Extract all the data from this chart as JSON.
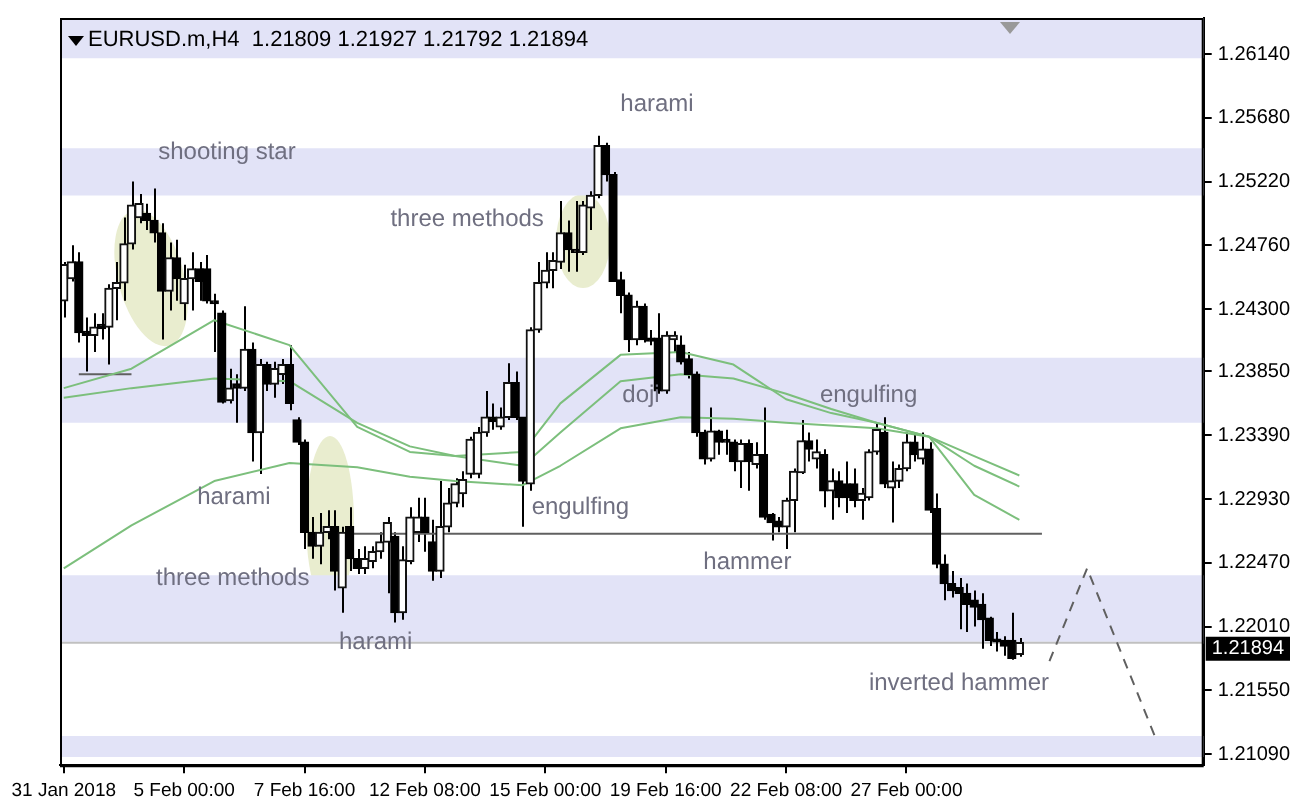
{
  "chart_data": {
    "type": "candlestick",
    "title": "EURUSD.m,H4  1.21809 1.21927 1.21792 1.21894",
    "categories": [
      "31 Jan 2018",
      null,
      null,
      null,
      null,
      null,
      null,
      null,
      null,
      null,
      null,
      null,
      null,
      null,
      null,
      null,
      "5 Feb 00:00",
      null,
      null,
      null,
      null,
      null,
      null,
      null,
      null,
      null,
      null,
      null,
      null,
      null,
      null,
      null,
      "7 Feb 16:00",
      null,
      null,
      null,
      null,
      null,
      null,
      null,
      null,
      null,
      null,
      null,
      null,
      null,
      null,
      null,
      "12 Feb 08:00",
      null,
      null,
      null,
      null,
      null,
      null,
      null,
      null,
      null,
      null,
      null,
      null,
      null,
      null,
      null,
      "15 Feb 00:00",
      null,
      null,
      null,
      null,
      null,
      null,
      null,
      null,
      null,
      null,
      null,
      null,
      null,
      null,
      null,
      "19 Feb 16:00",
      null,
      null,
      null,
      null,
      null,
      null,
      null,
      null,
      null,
      null,
      null,
      null,
      null,
      null,
      null,
      "22 Feb 08:00",
      null,
      null,
      null,
      null,
      null,
      null,
      null,
      null,
      null,
      null,
      null,
      null,
      null,
      null,
      null,
      "27 Feb 00:00",
      null,
      null,
      null,
      null,
      null,
      null,
      null,
      null,
      null,
      null,
      null,
      null,
      null,
      null,
      null,
      null,
      null,
      null,
      null,
      null,
      null,
      null,
      null,
      null,
      null,
      null,
      null,
      null,
      null,
      null,
      null,
      null,
      null,
      null,
      null,
      null,
      null,
      null,
      null
    ],
    "ohlc": [
      [
        1.2436,
        1.2464,
        1.2424,
        1.2462
      ],
      [
        1.2452,
        1.2476,
        1.245,
        1.2464
      ],
      [
        1.2464,
        1.2471,
        1.2406,
        1.2413
      ],
      [
        1.2414,
        1.2424,
        1.2385,
        1.2411
      ],
      [
        1.2411,
        1.2427,
        1.2399,
        1.2417
      ],
      [
        1.2419,
        1.2427,
        1.2408,
        1.2416
      ],
      [
        1.2417,
        1.2448,
        1.239,
        1.2445
      ],
      [
        1.2445,
        1.2464,
        1.2422,
        1.2449
      ],
      [
        1.2449,
        1.2496,
        1.2436,
        1.2477
      ],
      [
        1.2477,
        1.2522,
        1.2473,
        1.2505
      ],
      [
        1.2496,
        1.2513,
        1.2492,
        1.2506
      ],
      [
        1.2499,
        1.2506,
        1.2487,
        1.2494
      ],
      [
        1.2494,
        1.2517,
        1.2478,
        1.2485
      ],
      [
        1.2485,
        1.2492,
        1.2408,
        1.2443
      ],
      [
        1.2443,
        1.2478,
        1.2429,
        1.2467
      ],
      [
        1.2467,
        1.248,
        1.2436,
        1.2452
      ],
      [
        1.2434,
        1.2462,
        1.2422,
        1.2452
      ],
      [
        1.2452,
        1.2471,
        1.2429,
        1.2459
      ],
      [
        1.2459,
        1.2464,
        1.2436,
        1.245
      ],
      [
        1.2459,
        1.2469,
        1.2434,
        1.2436
      ],
      [
        1.2436,
        1.2441,
        1.2399,
        1.2434
      ],
      [
        1.2427,
        1.2429,
        1.2362,
        1.2363
      ],
      [
        1.2364,
        1.2387,
        1.2362,
        1.2373
      ],
      [
        1.2376,
        1.2383,
        1.2348,
        1.2373
      ],
      [
        1.2373,
        1.2432,
        1.2371,
        1.2401
      ],
      [
        1.2401,
        1.2406,
        1.232,
        1.2341
      ],
      [
        1.2341,
        1.2394,
        1.2311,
        1.239
      ],
      [
        1.239,
        1.2392,
        1.2371,
        1.2376
      ],
      [
        1.2376,
        1.2392,
        1.2366,
        1.2387
      ],
      [
        1.2383,
        1.2394,
        1.2376,
        1.239
      ],
      [
        1.239,
        1.2404,
        1.2357,
        1.2362
      ],
      [
        1.235,
        1.2352,
        1.2332,
        1.2334
      ],
      [
        1.2334,
        1.2336,
        1.2257,
        1.2269
      ],
      [
        1.2269,
        1.228,
        1.225,
        1.2259
      ],
      [
        1.2259,
        1.2283,
        1.2246,
        1.2269
      ],
      [
        1.2269,
        1.2285,
        1.2264,
        1.2273
      ],
      [
        1.2273,
        1.2285,
        1.2227,
        1.2241
      ],
      [
        1.2229,
        1.2273,
        1.2211,
        1.2269
      ],
      [
        1.2273,
        1.2287,
        1.2241,
        1.225
      ],
      [
        1.225,
        1.2257,
        1.2239,
        1.2243
      ],
      [
        1.2243,
        1.2259,
        1.2239,
        1.225
      ],
      [
        1.2248,
        1.2259,
        1.2243,
        1.2255
      ],
      [
        1.2255,
        1.2269,
        1.225,
        1.2262
      ],
      [
        1.2262,
        1.228,
        1.2225,
        1.2276
      ],
      [
        1.2266,
        1.2269,
        1.2204,
        1.2211
      ],
      [
        1.2211,
        1.2259,
        1.2206,
        1.2249
      ],
      [
        1.2248,
        1.2287,
        1.2246,
        1.228
      ],
      [
        1.2269,
        1.2294,
        1.2262,
        1.228
      ],
      [
        1.228,
        1.2294,
        1.2255,
        1.2269
      ],
      [
        1.2262,
        1.2278,
        1.2234,
        1.2241
      ],
      [
        1.2241,
        1.2306,
        1.2236,
        1.2273
      ],
      [
        1.2273,
        1.2301,
        1.2269,
        1.229
      ],
      [
        1.229,
        1.2308,
        1.2287,
        1.2304
      ],
      [
        1.2297,
        1.2313,
        1.2287,
        1.2307
      ],
      [
        1.2311,
        1.2338,
        1.2308,
        1.2336
      ],
      [
        1.2311,
        1.2345,
        1.2308,
        1.2341
      ],
      [
        1.2341,
        1.2371,
        1.2338,
        1.2352
      ],
      [
        1.2352,
        1.2362,
        1.2343,
        1.2349
      ],
      [
        1.2345,
        1.2359,
        1.2343,
        1.2352
      ],
      [
        1.2352,
        1.2391,
        1.235,
        1.2377
      ],
      [
        1.2377,
        1.2385,
        1.235,
        1.2352
      ],
      [
        1.2352,
        1.2352,
        1.2273,
        1.2306
      ],
      [
        1.2304,
        1.2417,
        1.2299,
        1.2415
      ],
      [
        1.2415,
        1.2464,
        1.2413,
        1.2449
      ],
      [
        1.2449,
        1.2471,
        1.2445,
        1.2458
      ],
      [
        1.2458,
        1.2471,
        1.2445,
        1.2465
      ],
      [
        1.2464,
        1.2508,
        1.2459,
        1.2485
      ],
      [
        1.2485,
        1.2494,
        1.2457,
        1.2473
      ],
      [
        1.2473,
        1.2508,
        1.2457,
        1.2471
      ],
      [
        1.2471,
        1.2508,
        1.2469,
        1.2505
      ],
      [
        1.2503,
        1.2515,
        1.2487,
        1.2512
      ],
      [
        1.2512,
        1.2555,
        1.251,
        1.2548
      ],
      [
        1.2548,
        1.255,
        1.2522,
        1.2527
      ],
      [
        1.2527,
        1.2529,
        1.245,
        1.245
      ],
      [
        1.2451,
        1.2457,
        1.2427,
        1.244
      ],
      [
        1.244,
        1.2442,
        1.2399,
        1.2408
      ],
      [
        1.2408,
        1.2436,
        1.2404,
        1.2432
      ],
      [
        1.2432,
        1.2434,
        1.2406,
        1.2408
      ],
      [
        1.2409,
        1.2415,
        1.2404,
        1.2407
      ],
      [
        1.2409,
        1.2427,
        1.2369,
        1.2371
      ],
      [
        1.2371,
        1.2414,
        1.2369,
        1.2411
      ],
      [
        1.2408,
        1.2414,
        1.2399,
        1.2411
      ],
      [
        1.2404,
        1.2411,
        1.239,
        1.2392
      ],
      [
        1.2394,
        1.2399,
        1.238,
        1.2383
      ],
      [
        1.2383,
        1.2385,
        1.2338,
        1.2341
      ],
      [
        1.2341,
        1.2343,
        1.2318,
        1.2322
      ],
      [
        1.2322,
        1.2359,
        1.232,
        1.2342
      ],
      [
        1.2342,
        1.2343,
        1.2325,
        1.2334
      ],
      [
        1.2336,
        1.2343,
        1.2325,
        1.2334
      ],
      [
        1.2334,
        1.2336,
        1.2313,
        1.232
      ],
      [
        1.232,
        1.2336,
        1.2301,
        1.2333
      ],
      [
        1.2333,
        1.2336,
        1.2299,
        1.232
      ],
      [
        1.2318,
        1.2334,
        1.2315,
        1.2325
      ],
      [
        1.2325,
        1.2359,
        1.2278,
        1.228
      ],
      [
        1.2282,
        1.2283,
        1.2263,
        1.2276
      ],
      [
        1.2277,
        1.228,
        1.2269,
        1.2273
      ],
      [
        1.2273,
        1.2294,
        1.2257,
        1.2292
      ],
      [
        1.2292,
        1.2315,
        1.2269,
        1.2313
      ],
      [
        1.2312,
        1.235,
        1.2311,
        1.2335
      ],
      [
        1.2335,
        1.2341,
        1.232,
        1.2329
      ],
      [
        1.2322,
        1.2336,
        1.2315,
        1.2327
      ],
      [
        1.2325,
        1.2329,
        1.2287,
        1.2299
      ],
      [
        1.2299,
        1.2315,
        1.2278,
        1.2306
      ],
      [
        1.2306,
        1.2313,
        1.2287,
        1.2294
      ],
      [
        1.2304,
        1.232,
        1.2283,
        1.2294
      ],
      [
        1.2304,
        1.2315,
        1.2287,
        1.2292
      ],
      [
        1.2292,
        1.2301,
        1.2278,
        1.2297
      ],
      [
        1.2294,
        1.2329,
        1.2292,
        1.2327
      ],
      [
        1.2327,
        1.2348,
        1.2325,
        1.2343
      ],
      [
        1.2341,
        1.2352,
        1.2301,
        1.2304
      ],
      [
        1.2301,
        1.232,
        1.2276,
        1.2306
      ],
      [
        1.2306,
        1.2318,
        1.2301,
        1.2315
      ],
      [
        1.2315,
        1.2341,
        1.2313,
        1.2334
      ],
      [
        1.2334,
        1.2341,
        1.232,
        1.2325
      ],
      [
        1.2322,
        1.2341,
        1.2318,
        1.2329
      ],
      [
        1.2329,
        1.2334,
        1.2283,
        1.2285
      ],
      [
        1.2286,
        1.2297,
        1.2243,
        1.2246
      ],
      [
        1.2246,
        1.2253,
        1.222,
        1.2232
      ],
      [
        1.2232,
        1.2241,
        1.2222,
        1.2227
      ],
      [
        1.2229,
        1.2236,
        1.2199,
        1.2225
      ],
      [
        1.2225,
        1.2232,
        1.2197,
        1.2217
      ],
      [
        1.222,
        1.2227,
        1.2201,
        1.2215
      ],
      [
        1.2217,
        1.2225,
        1.2185,
        1.2206
      ],
      [
        1.2207,
        1.2208,
        1.2187,
        1.2191
      ],
      [
        1.2192,
        1.2197,
        1.2183,
        1.219
      ],
      [
        1.2191,
        1.2194,
        1.218,
        1.2187
      ],
      [
        1.2191,
        1.2211,
        1.2177,
        1.2178
      ],
      [
        1.21809,
        1.21927,
        1.21792,
        1.21894
      ],
      null,
      null,
      null,
      null,
      null,
      null,
      null,
      null,
      null,
      null,
      null,
      null,
      null,
      null,
      null,
      null,
      null,
      null,
      null,
      null,
      null,
      null,
      null,
      null
    ],
    "series": [
      {
        "type": "line",
        "color": "#7cbf7c",
        "values": [
          1.2373,
          null,
          null,
          null,
          null,
          null,
          null,
          null,
          null,
          1.2387,
          null,
          null,
          null,
          null,
          null,
          null,
          null,
          null,
          null,
          null,
          1.2422,
          null,
          null,
          null,
          null,
          null,
          null,
          null,
          null,
          null,
          1.2404,
          null,
          null,
          null,
          null,
          null,
          null,
          null,
          null,
          1.2345,
          null,
          null,
          null,
          null,
          null,
          null,
          1.2327,
          null,
          null,
          null,
          null,
          null,
          1.2324,
          null,
          null,
          null,
          null,
          null,
          null,
          null,
          null,
          1.2327,
          null,
          null,
          null,
          null,
          1.2362,
          null,
          null,
          null,
          null,
          null,
          null,
          null,
          1.2397,
          null,
          null,
          null,
          null,
          null,
          null,
          null,
          1.2399,
          null,
          null,
          null,
          null,
          null,
          null,
          1.239,
          null,
          null,
          null,
          null,
          null,
          null,
          1.2365,
          null,
          null,
          null,
          null,
          null,
          1.2355,
          null,
          null,
          null,
          null,
          null,
          1.2348,
          null,
          null,
          null,
          null,
          null,
          null,
          1.2338,
          null,
          null,
          null,
          null,
          null,
          1.2296,
          null,
          null,
          null,
          null,
          null,
          1.2278,
          null,
          null,
          null,
          null,
          null,
          null,
          null,
          null,
          null,
          null,
          null,
          null,
          null,
          null,
          null,
          null,
          null,
          null,
          null,
          null,
          null,
          null,
          null,
          null
        ]
      },
      {
        "type": "line",
        "color": "#7cbf7c",
        "values": [
          1.2366,
          null,
          null,
          null,
          null,
          null,
          null,
          null,
          null,
          1.2373,
          null,
          null,
          null,
          null,
          null,
          null,
          null,
          null,
          null,
          null,
          1.238,
          null,
          null,
          null,
          null,
          null,
          null,
          null,
          null,
          null,
          1.2378,
          null,
          null,
          null,
          null,
          null,
          null,
          null,
          null,
          1.2348,
          null,
          null,
          null,
          null,
          null,
          null,
          1.2331,
          null,
          null,
          null,
          null,
          null,
          1.2324,
          null,
          null,
          null,
          null,
          null,
          null,
          null,
          null,
          1.2317,
          null,
          null,
          null,
          null,
          1.2341,
          null,
          null,
          null,
          null,
          null,
          null,
          null,
          1.2378,
          null,
          null,
          null,
          null,
          null,
          null,
          null,
          1.2383,
          null,
          null,
          null,
          null,
          null,
          null,
          1.238,
          null,
          null,
          null,
          null,
          null,
          null,
          1.2369,
          null,
          null,
          null,
          null,
          null,
          1.2358,
          null,
          null,
          null,
          null,
          null,
          1.2348,
          null,
          null,
          null,
          null,
          null,
          null,
          1.2338,
          null,
          null,
          null,
          null,
          null,
          1.2317,
          null,
          null,
          null,
          null,
          null,
          1.2302,
          null,
          null,
          null,
          null,
          null,
          null,
          null,
          null,
          null,
          null,
          null,
          null,
          null,
          null,
          null,
          null,
          null,
          null,
          null,
          null,
          null,
          null,
          null,
          null
        ]
      },
      {
        "type": "line",
        "color": "#7cbf7c",
        "values": [
          1.2243,
          null,
          null,
          null,
          null,
          null,
          null,
          null,
          null,
          1.2274,
          null,
          null,
          null,
          null,
          null,
          null,
          null,
          null,
          null,
          null,
          1.2306,
          null,
          null,
          null,
          null,
          null,
          null,
          null,
          null,
          null,
          1.2319,
          null,
          null,
          null,
          null,
          null,
          null,
          null,
          null,
          1.2316,
          null,
          null,
          null,
          null,
          null,
          null,
          1.2309,
          null,
          null,
          null,
          null,
          null,
          1.2306,
          null,
          null,
          null,
          null,
          null,
          null,
          null,
          null,
          1.2303,
          null,
          null,
          null,
          null,
          1.2317,
          null,
          null,
          null,
          null,
          null,
          null,
          null,
          1.2344,
          null,
          null,
          null,
          null,
          null,
          null,
          null,
          1.2352,
          null,
          null,
          null,
          null,
          null,
          null,
          1.2351,
          null,
          null,
          null,
          null,
          null,
          null,
          1.2348,
          null,
          null,
          null,
          null,
          null,
          1.2346,
          null,
          null,
          null,
          null,
          null,
          1.2344,
          null,
          null,
          null,
          null,
          null,
          null,
          1.2338,
          null,
          null,
          null,
          null,
          null,
          1.2324,
          null,
          null,
          null,
          null,
          null,
          1.231,
          null,
          null,
          null,
          null,
          null,
          null,
          null,
          null,
          null,
          null,
          null,
          null,
          null,
          null,
          null,
          null,
          null,
          null,
          null,
          null,
          null,
          null,
          null,
          null
        ]
      },
      {
        "type": "line",
        "color": "#606060",
        "values": [
          null,
          null,
          1.2383,
          null,
          null,
          null,
          null,
          null,
          null,
          1.2383,
          null,
          null,
          null,
          null,
          null,
          null,
          null,
          null,
          null,
          null,
          null,
          null,
          null,
          null,
          null,
          null,
          null,
          null,
          null,
          null,
          null,
          null,
          null,
          null,
          null,
          null,
          null,
          null,
          null,
          null,
          null,
          null,
          null,
          null,
          null,
          null,
          null,
          null,
          null,
          null,
          null,
          null,
          null,
          null,
          null,
          null,
          null,
          null,
          null,
          null,
          null,
          null,
          null,
          null,
          null,
          null,
          null,
          null,
          null,
          null,
          null,
          null,
          null,
          null,
          null,
          null,
          null,
          null,
          null,
          null,
          null,
          null,
          null,
          null,
          null,
          null,
          null,
          null,
          null,
          null,
          null,
          null,
          null,
          null,
          null,
          null,
          null,
          null,
          null,
          null,
          null,
          null,
          null,
          null,
          null,
          null,
          null,
          null,
          null,
          null,
          null,
          null,
          null,
          null,
          null,
          null,
          null,
          null,
          null,
          null,
          null,
          null,
          null,
          null,
          null,
          null,
          null,
          null,
          null,
          null,
          null,
          null,
          null,
          null,
          null,
          null,
          null,
          null,
          null,
          null,
          null,
          null,
          null,
          null,
          null,
          null,
          null,
          null,
          null,
          null,
          null,
          null
        ]
      },
      {
        "type": "line",
        "color": "#606060",
        "values": [
          null,
          null,
          null,
          null,
          null,
          null,
          null,
          null,
          null,
          null,
          null,
          null,
          null,
          null,
          null,
          null,
          null,
          null,
          null,
          null,
          null,
          null,
          null,
          null,
          null,
          null,
          null,
          null,
          null,
          null,
          null,
          null,
          null,
          null,
          null,
          null,
          null,
          null,
          1.2268,
          null,
          null,
          null,
          null,
          null,
          null,
          null,
          null,
          null,
          null,
          null,
          null,
          null,
          null,
          null,
          null,
          null,
          null,
          null,
          null,
          null,
          null,
          null,
          null,
          null,
          null,
          null,
          null,
          null,
          null,
          null,
          null,
          null,
          null,
          null,
          null,
          null,
          null,
          null,
          null,
          null,
          null,
          null,
          null,
          null,
          null,
          null,
          null,
          null,
          null,
          null,
          null,
          null,
          null,
          null,
          null,
          null,
          null,
          null,
          null,
          null,
          null,
          null,
          null,
          null,
          null,
          null,
          null,
          null,
          null,
          null,
          null,
          null,
          null,
          null,
          null,
          null,
          null,
          null,
          null,
          null,
          null,
          null,
          null,
          null,
          null,
          null,
          null,
          null,
          null,
          null,
          1.2268,
          null,
          null,
          null,
          null,
          null,
          null,
          null,
          null,
          null,
          null,
          null,
          null,
          null,
          null,
          null,
          null,
          null,
          null,
          null,
          null,
          null
        ]
      },
      {
        "type": "line",
        "color": "#606060",
        "line_style": "dashed",
        "values": [
          null,
          null,
          null,
          null,
          null,
          null,
          null,
          null,
          null,
          null,
          null,
          null,
          null,
          null,
          null,
          null,
          null,
          null,
          null,
          null,
          null,
          null,
          null,
          null,
          null,
          null,
          null,
          null,
          null,
          null,
          null,
          null,
          null,
          null,
          null,
          null,
          null,
          null,
          null,
          null,
          null,
          null,
          null,
          null,
          null,
          null,
          null,
          null,
          null,
          null,
          null,
          null,
          null,
          null,
          null,
          null,
          null,
          null,
          null,
          null,
          null,
          null,
          null,
          null,
          null,
          null,
          null,
          null,
          null,
          null,
          null,
          null,
          null,
          null,
          null,
          null,
          null,
          null,
          null,
          null,
          null,
          null,
          null,
          null,
          null,
          null,
          null,
          null,
          null,
          null,
          null,
          null,
          null,
          null,
          null,
          null,
          null,
          null,
          null,
          null,
          null,
          null,
          null,
          null,
          null,
          null,
          null,
          null,
          null,
          null,
          null,
          null,
          null,
          null,
          null,
          null,
          null,
          null,
          null,
          null,
          null,
          null,
          null,
          null,
          null,
          null,
          null,
          null,
          null,
          null,
          null,
          1.2176,
          null,
          null,
          null,
          null,
          1.2243,
          null,
          null,
          null,
          null,
          null,
          null,
          null,
          null,
          1.2122,
          null,
          null,
          null,
          null,
          null,
          null
        ]
      }
    ],
    "bands": [
      {
        "axis": "y",
        "from": 1.2611,
        "to": 1.264,
        "color": "#e2e3f7"
      },
      {
        "axis": "y",
        "from": 1.2512,
        "to": 1.2546,
        "color": "#e2e3f7"
      },
      {
        "axis": "y",
        "from": 1.2348,
        "to": 1.2395,
        "color": "#e2e3f7"
      },
      {
        "axis": "y",
        "from": 1.219,
        "to": 1.2238,
        "color": "#e2e3f7"
      },
      {
        "axis": "y",
        "from": 1.2107,
        "to": 1.2122,
        "color": "#e2e3f7"
      }
    ],
    "ref_lines": [
      {
        "axis": "y",
        "value": 1.21894,
        "label": "1.21894",
        "color": "#c0c0c0"
      }
    ],
    "annotations": [
      "shooting star",
      "three methods",
      "harami",
      "harami",
      "three methods",
      "harami",
      "engulfing",
      "doji",
      "engulfing",
      "hammer",
      "inverted hammer"
    ],
    "ylim": [
      1.2101,
      1.264
    ],
    "yticks": [
      {
        "value": 1.2109,
        "label": "1.21090"
      },
      {
        "value": 1.2155,
        "label": "1.21550"
      },
      {
        "value": 1.2201,
        "label": "1.22010"
      },
      {
        "value": 1.2247,
        "label": "1.22470"
      },
      {
        "value": 1.2293,
        "label": "1.22930"
      },
      {
        "value": 1.2339,
        "label": "1.23390"
      },
      {
        "value": 1.2385,
        "label": "1.23850"
      },
      {
        "value": 1.243,
        "label": "1.24300"
      },
      {
        "value": 1.2476,
        "label": "1.24760"
      },
      {
        "value": 1.2522,
        "label": "1.25220"
      },
      {
        "value": 1.2568,
        "label": "1.25680"
      },
      {
        "value": 1.2614,
        "label": "1.26140"
      }
    ]
  }
}
